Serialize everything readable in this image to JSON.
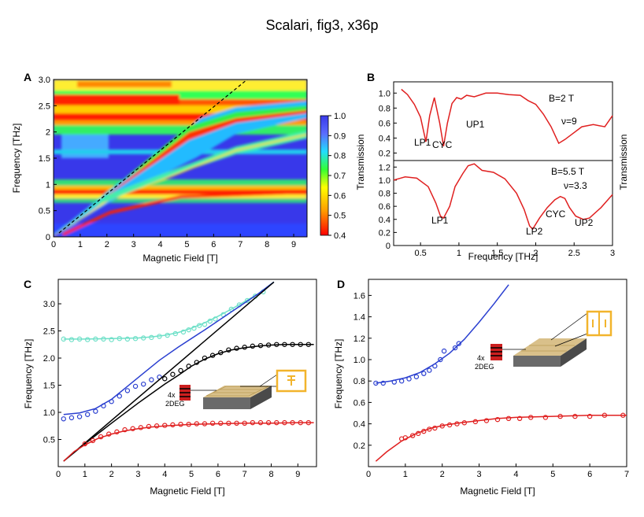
{
  "figure_title": "Scalari, fig3, x36p",
  "colors": {
    "red": "#e02020",
    "blue": "#2a3fd0",
    "teal": "#6fe0c8",
    "black": "#000000",
    "gold": "#f2b42c"
  },
  "panels": {
    "A": {
      "letter": "A",
      "xlabel": "Magnetic Field [T]",
      "ylabel": "Frequency [THz]",
      "colorbar_ticks": [
        "1.0",
        "0.9",
        "0.8",
        "0.7",
        "0.6",
        "0.5",
        "0.4"
      ]
    },
    "B": {
      "letter": "B",
      "xlabel": "Frequency [THz]",
      "ylabel": "Transmission",
      "ylabel_right": "Transmission",
      "top": {
        "field": "B=2 T",
        "nu": "ν=9",
        "labels": [
          "LP1",
          "CYC",
          "UP1"
        ]
      },
      "bottom": {
        "field": "B=5.5 T",
        "nu": "ν=3.3",
        "labels": [
          "LP1",
          "LP2",
          "CYC",
          "UP2"
        ]
      }
    },
    "C": {
      "letter": "C",
      "xlabel": "Magnetic Field [T]",
      "ylabel": "Frequency [THz]",
      "inset_label": "4x\n2DEG"
    },
    "D": {
      "letter": "D",
      "xlabel": "Magnetic Field [T]",
      "ylabel": "Frequency [THz]",
      "inset_label": "4x\n2DEG"
    }
  },
  "chart_data": [
    {
      "panel": "A",
      "type": "heatmap",
      "xlabel": "Magnetic Field [T]",
      "ylabel": "Frequency [THz]",
      "xlim": [
        0,
        9.5
      ],
      "ylim": [
        0,
        3.0
      ],
      "xticks": [
        0,
        1,
        2,
        3,
        4,
        5,
        6,
        7,
        8,
        9
      ],
      "yticks": [
        0,
        0.5,
        1,
        1.5,
        2,
        2.5,
        3.0
      ],
      "colorbar": {
        "min": 0.4,
        "max": 1.0,
        "ticks": [
          1.0,
          0.9,
          0.8,
          0.7,
          0.6,
          0.5,
          0.4
        ]
      },
      "dashed_line": {
        "x": [
          0,
          7.4
        ],
        "y": [
          0,
          3.0
        ]
      }
    },
    {
      "panel": "B-top",
      "type": "line",
      "xlabel": "Frequency [THz]",
      "ylabel": "Transmission",
      "xlim": [
        0.15,
        3.0
      ],
      "ylim": [
        0.1,
        1.15
      ],
      "xticks": [],
      "yticks": [
        0.2,
        0.4,
        0.6,
        0.8,
        1.0
      ],
      "x": [
        0.25,
        0.33,
        0.42,
        0.5,
        0.57,
        0.62,
        0.68,
        0.75,
        0.8,
        0.85,
        0.91,
        0.97,
        1.03,
        1.1,
        1.2,
        1.35,
        1.5,
        1.65,
        1.8,
        1.9,
        2.0,
        2.1,
        2.2,
        2.3,
        2.38,
        2.47,
        2.6,
        2.75,
        2.9,
        3.0
      ],
      "y": [
        1.05,
        0.98,
        0.85,
        0.68,
        0.35,
        0.7,
        0.94,
        0.6,
        0.29,
        0.6,
        0.86,
        0.94,
        0.92,
        0.97,
        0.95,
        1.0,
        1.0,
        0.98,
        0.97,
        0.9,
        0.85,
        0.72,
        0.55,
        0.33,
        0.38,
        0.45,
        0.55,
        0.58,
        0.55,
        0.7
      ],
      "annotations": {
        "B": "B=2 T",
        "nu": "ν=9"
      }
    },
    {
      "panel": "B-bottom",
      "type": "line",
      "xlabel": "Frequency [THz]",
      "ylabel": "Transmission",
      "xlim": [
        0.15,
        3.0
      ],
      "ylim": [
        0.0,
        1.3
      ],
      "xticks": [
        0.5,
        1.0,
        1.5,
        2.0,
        2.5,
        3.0
      ],
      "yticks": [
        0,
        0.2,
        0.4,
        0.6,
        0.8,
        1.0,
        1.2
      ],
      "x": [
        0.15,
        0.3,
        0.45,
        0.6,
        0.7,
        0.76,
        0.8,
        0.88,
        0.95,
        1.05,
        1.12,
        1.2,
        1.3,
        1.45,
        1.6,
        1.75,
        1.85,
        1.92,
        1.96,
        2.05,
        2.15,
        2.25,
        2.32,
        2.38,
        2.44,
        2.52,
        2.62,
        2.7,
        2.85,
        3.0
      ],
      "y": [
        1.0,
        1.05,
        1.03,
        0.9,
        0.65,
        0.45,
        0.42,
        0.6,
        0.9,
        1.1,
        1.22,
        1.25,
        1.15,
        1.12,
        1.02,
        0.8,
        0.55,
        0.3,
        0.25,
        0.42,
        0.58,
        0.7,
        0.75,
        0.72,
        0.58,
        0.45,
        0.4,
        0.42,
        0.58,
        0.78
      ],
      "annotations": {
        "B": "B=5.5 T",
        "nu": "ν=3.3"
      }
    },
    {
      "panel": "C",
      "type": "scatter",
      "xlabel": "Magnetic Field [T]",
      "ylabel": "Frequency [THz]",
      "xlim": [
        0,
        9.7
      ],
      "ylim": [
        0,
        3.45
      ],
      "xticks": [
        0,
        1,
        2,
        3,
        4,
        5,
        6,
        7,
        8,
        9
      ],
      "yticks": [
        0.5,
        1.0,
        1.5,
        2.0,
        2.5,
        3.0
      ],
      "series": [
        {
          "name": "upper (teal)",
          "color": "#6fe0c8",
          "points_x": [
            0.2,
            0.5,
            0.8,
            1.1,
            1.4,
            1.7,
            2.0,
            2.3,
            2.6,
            2.9,
            3.2,
            3.5,
            3.8,
            4.1,
            4.4,
            4.7,
            4.9,
            5.1,
            5.3,
            5.5,
            5.7,
            5.9,
            6.2,
            6.5,
            6.8,
            7.1,
            7.4,
            7.7
          ],
          "points_y": [
            2.35,
            2.34,
            2.35,
            2.34,
            2.35,
            2.35,
            2.34,
            2.36,
            2.35,
            2.36,
            2.37,
            2.38,
            2.4,
            2.42,
            2.45,
            2.48,
            2.52,
            2.55,
            2.6,
            2.62,
            2.68,
            2.72,
            2.8,
            2.9,
            2.98,
            3.06,
            3.14,
            3.22
          ],
          "fit_x": [
            0.2,
            1.0,
            2.0,
            3.0,
            3.5,
            4.0,
            4.5,
            5.0,
            5.5,
            6.0,
            6.5,
            7.0,
            7.5,
            8.1
          ],
          "fit_y": [
            2.35,
            2.35,
            2.36,
            2.37,
            2.39,
            2.42,
            2.47,
            2.55,
            2.65,
            2.77,
            2.9,
            3.04,
            3.18,
            3.4
          ]
        },
        {
          "name": "upper polariton (blue)",
          "color": "#2a3fd0",
          "points_x": [
            0.2,
            0.5,
            0.8,
            1.1,
            1.4,
            1.7,
            2.0,
            2.3,
            2.6,
            2.9,
            3.2,
            3.5,
            3.8
          ],
          "points_y": [
            0.88,
            0.9,
            0.92,
            0.96,
            1.02,
            1.12,
            1.2,
            1.3,
            1.4,
            1.48,
            1.52,
            1.6,
            1.65
          ],
          "fit_x": [
            0.2,
            0.8,
            1.4,
            2.0,
            2.6,
            3.2,
            3.8,
            4.5,
            5.5,
            6.5,
            7.5,
            8.1
          ],
          "fit_y": [
            0.96,
            0.99,
            1.07,
            1.24,
            1.48,
            1.72,
            1.96,
            2.2,
            2.52,
            2.85,
            3.18,
            3.4
          ]
        },
        {
          "name": "black",
          "color": "#000000",
          "points_x": [
            4.0,
            4.3,
            4.6,
            4.9,
            5.2,
            5.5,
            5.8,
            6.1,
            6.4,
            6.7,
            7.0,
            7.3,
            7.6,
            7.9,
            8.2,
            8.5,
            8.8,
            9.1,
            9.4
          ],
          "points_y": [
            1.62,
            1.7,
            1.77,
            1.85,
            1.92,
            2.0,
            2.05,
            2.1,
            2.15,
            2.18,
            2.2,
            2.22,
            2.23,
            2.24,
            2.25,
            2.25,
            2.25,
            2.25,
            2.25
          ],
          "fit_x": [
            0.2,
            1.0,
            2.0,
            3.0,
            4.0,
            4.5,
            5.0,
            5.5,
            6.0,
            6.5,
            7.0,
            7.5,
            8.0,
            8.5,
            9.0,
            9.6
          ],
          "fit_y": [
            0.1,
            0.42,
            0.8,
            1.17,
            1.52,
            1.68,
            1.85,
            1.98,
            2.08,
            2.15,
            2.19,
            2.22,
            2.24,
            2.25,
            2.25,
            2.25
          ]
        },
        {
          "name": "bare cyclotron (black line)",
          "color": "#000000",
          "line_x": [
            0.2,
            8.1
          ],
          "line_y": [
            0.1,
            3.4
          ]
        },
        {
          "name": "lower polariton (red)",
          "color": "#e02020",
          "points_x": [
            1.0,
            1.3,
            1.6,
            1.9,
            2.2,
            2.5,
            2.8,
            3.1,
            3.4,
            3.7,
            4.0,
            4.3,
            4.6,
            4.9,
            5.2,
            5.5,
            5.8,
            6.1,
            6.4,
            6.7,
            7.0,
            7.3,
            7.6,
            7.9,
            8.2,
            8.5,
            8.8,
            9.1,
            9.4
          ],
          "points_y": [
            0.42,
            0.48,
            0.55,
            0.6,
            0.64,
            0.68,
            0.7,
            0.72,
            0.74,
            0.75,
            0.76,
            0.77,
            0.78,
            0.78,
            0.79,
            0.79,
            0.8,
            0.8,
            0.8,
            0.8,
            0.8,
            0.81,
            0.81,
            0.81,
            0.81,
            0.81,
            0.81,
            0.81,
            0.81
          ],
          "fit_x": [
            0.2,
            0.6,
            1.0,
            1.5,
            2.0,
            2.5,
            3.0,
            3.5,
            4.0,
            5.0,
            6.0,
            7.0,
            8.0,
            9.0,
            9.6
          ],
          "fit_y": [
            0.1,
            0.28,
            0.4,
            0.52,
            0.6,
            0.66,
            0.7,
            0.73,
            0.75,
            0.78,
            0.79,
            0.8,
            0.8,
            0.81,
            0.81
          ]
        }
      ]
    },
    {
      "panel": "D",
      "type": "scatter",
      "xlabel": "Magnetic Field [T]",
      "ylabel": "Frequency [THz]",
      "xlim": [
        0,
        7
      ],
      "ylim": [
        0,
        1.75
      ],
      "xticks": [
        0,
        1,
        2,
        3,
        4,
        5,
        6,
        7
      ],
      "yticks": [
        0.2,
        0.4,
        0.6,
        0.8,
        1.0,
        1.2,
        1.4,
        1.6
      ],
      "series": [
        {
          "name": "upper polariton (blue)",
          "color": "#2a3fd0",
          "points_x": [
            0.2,
            0.4,
            0.7,
            0.9,
            1.1,
            1.3,
            1.5,
            1.65,
            1.8,
            1.95,
            2.05,
            2.35,
            2.45
          ],
          "points_y": [
            0.78,
            0.78,
            0.79,
            0.8,
            0.82,
            0.84,
            0.87,
            0.9,
            0.94,
            1.0,
            1.08,
            1.11,
            1.15
          ],
          "fit_x": [
            0.2,
            0.6,
            1.0,
            1.4,
            1.8,
            2.2,
            2.6,
            3.0,
            3.4,
            3.8
          ],
          "fit_y": [
            0.78,
            0.8,
            0.83,
            0.88,
            0.96,
            1.06,
            1.19,
            1.35,
            1.52,
            1.7
          ]
        },
        {
          "name": "lower polariton (red)",
          "color": "#e02020",
          "points_x": [
            0.9,
            1.0,
            1.2,
            1.35,
            1.5,
            1.65,
            1.8,
            2.0,
            2.2,
            2.4,
            2.6,
            2.9,
            3.2,
            3.5,
            3.8,
            4.1,
            4.4,
            4.8,
            5.2,
            5.6,
            6.0,
            6.4,
            6.9
          ],
          "points_y": [
            0.26,
            0.27,
            0.29,
            0.31,
            0.33,
            0.35,
            0.36,
            0.38,
            0.39,
            0.4,
            0.41,
            0.42,
            0.43,
            0.44,
            0.45,
            0.45,
            0.46,
            0.46,
            0.47,
            0.47,
            0.47,
            0.48,
            0.48
          ],
          "fit_x": [
            0.2,
            0.5,
            0.9,
            1.3,
            1.7,
            2.1,
            2.5,
            3.0,
            3.5,
            4.0,
            5.0,
            6.0,
            7.0
          ],
          "fit_y": [
            0.05,
            0.14,
            0.24,
            0.31,
            0.36,
            0.39,
            0.41,
            0.43,
            0.45,
            0.46,
            0.47,
            0.48,
            0.48
          ]
        }
      ]
    }
  ]
}
